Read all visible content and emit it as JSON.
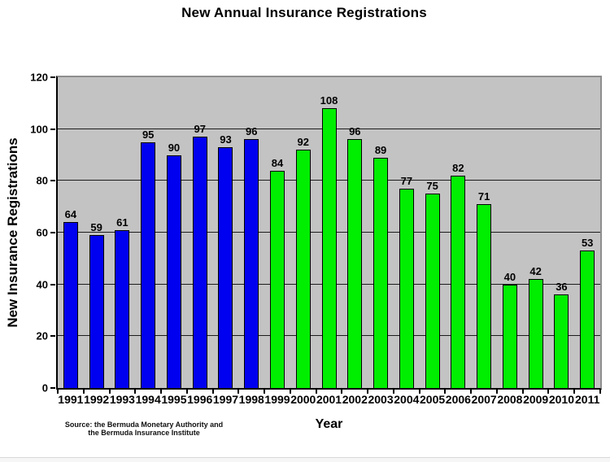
{
  "title": "New Annual Insurance Registrations",
  "chart_data": {
    "type": "bar",
    "title": "New Annual Insurance Registrations",
    "xlabel": "Year",
    "ylabel": "New Insurance Registrations",
    "categories": [
      "1991",
      "1992",
      "1993",
      "1994",
      "1995",
      "1996",
      "1997",
      "1998",
      "1999",
      "2000",
      "2001",
      "2002",
      "2003",
      "2004",
      "2005",
      "2006",
      "2007",
      "2008",
      "2009",
      "2010",
      "2011"
    ],
    "values": [
      64,
      59,
      61,
      95,
      90,
      97,
      93,
      96,
      84,
      92,
      108,
      96,
      89,
      77,
      75,
      82,
      71,
      40,
      42,
      36,
      53
    ],
    "bar_colors": [
      "#0000F0",
      "#0000F0",
      "#0000F0",
      "#0000F0",
      "#0000F0",
      "#0000F0",
      "#0000F0",
      "#0000F0",
      "#00EE00",
      "#00EE00",
      "#00EE00",
      "#00EE00",
      "#00EE00",
      "#00EE00",
      "#00EE00",
      "#00EE00",
      "#00EE00",
      "#00EE00",
      "#00EE00",
      "#00EE00",
      "#00EE00"
    ],
    "colors": {
      "blue_bars_1991_1998": "#0000F0",
      "green_bars_1999_2011": "#00EE00",
      "plot_background": "#C3C3C3",
      "gridline": "#1C1C1C"
    },
    "ylim": [
      0,
      120
    ],
    "yticks": [
      0,
      20,
      40,
      60,
      80,
      100,
      120
    ],
    "grid": true,
    "legend_position": "none",
    "data_labels": "above bars"
  },
  "source_note": {
    "line1": "Source: the Bermuda Monetary Authority and",
    "line2": "the Bermuda Insurance Institute"
  }
}
